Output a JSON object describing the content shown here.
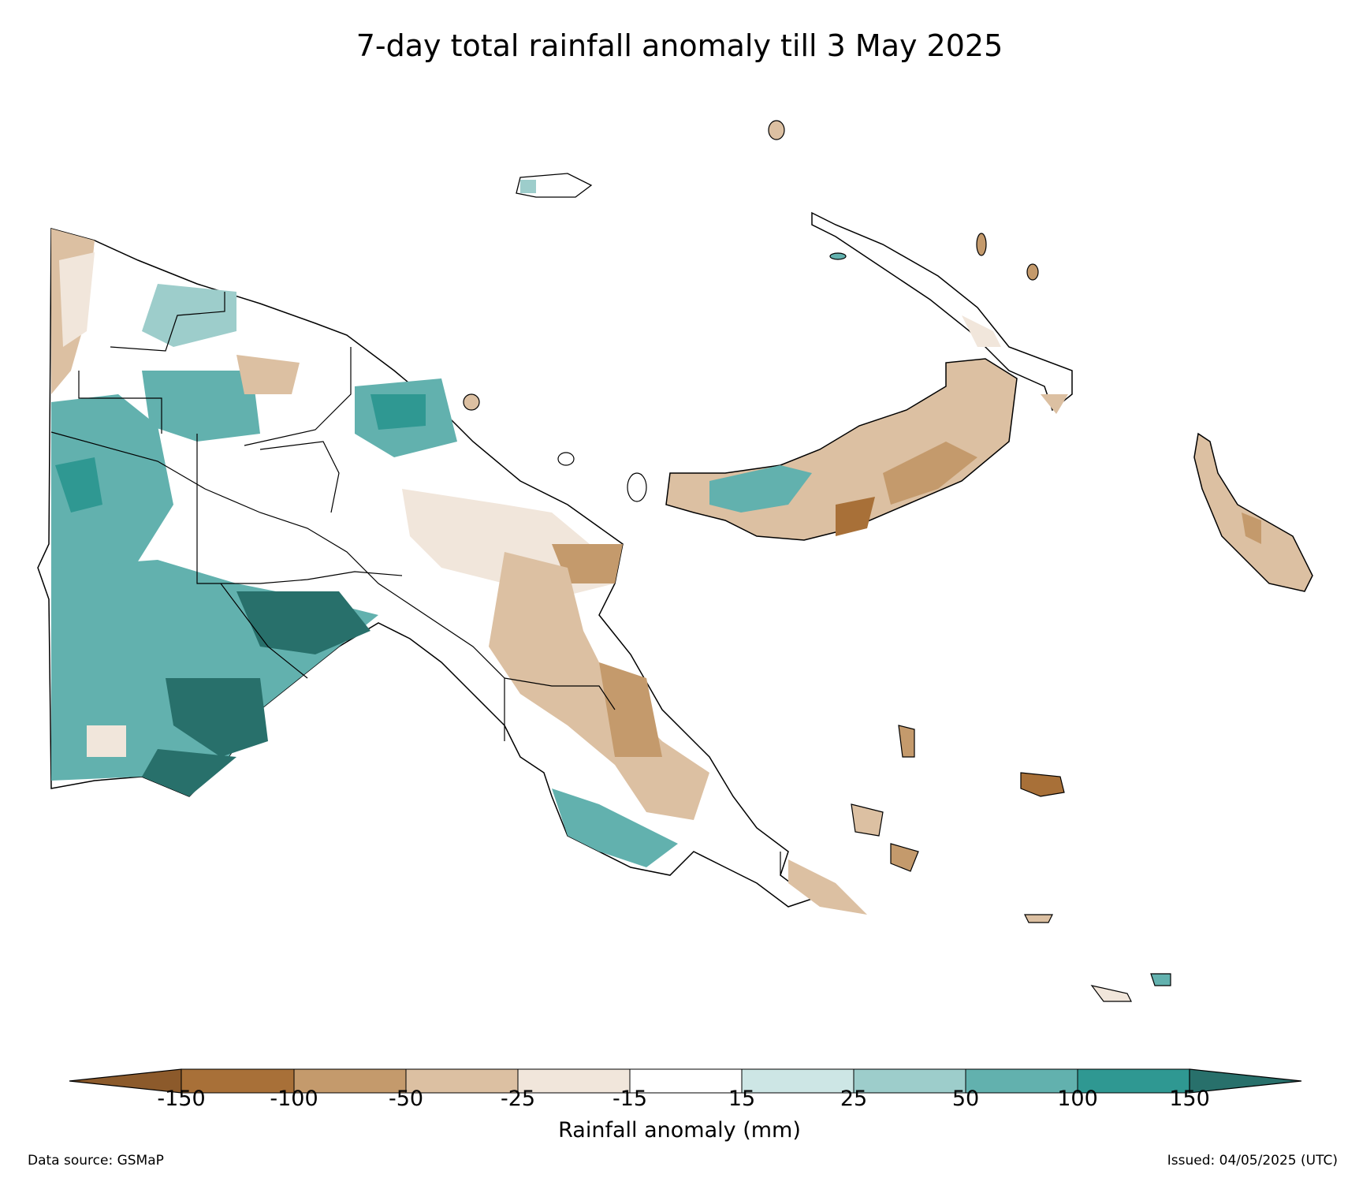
{
  "title": "7-day total rainfall anomaly till 3 May 2025",
  "colorbar": {
    "label": "Rainfall anomaly (mm)",
    "ticks": [
      "-150",
      "-100",
      "-50",
      "-25",
      "-15",
      "15",
      "25",
      "50",
      "100",
      "150"
    ],
    "colors": [
      "#8c5a2b",
      "#a87038",
      "#c49a6c",
      "#dcc0a2",
      "#f1e6db",
      "#ffffff",
      "#cde6e5",
      "#9dcdcb",
      "#62b1ae",
      "#2f9892",
      "#28706b"
    ],
    "extend": "both"
  },
  "footer": {
    "source": "Data source: GSMaP",
    "issued": "Issued: 04/05/2025 (UTC)"
  }
}
